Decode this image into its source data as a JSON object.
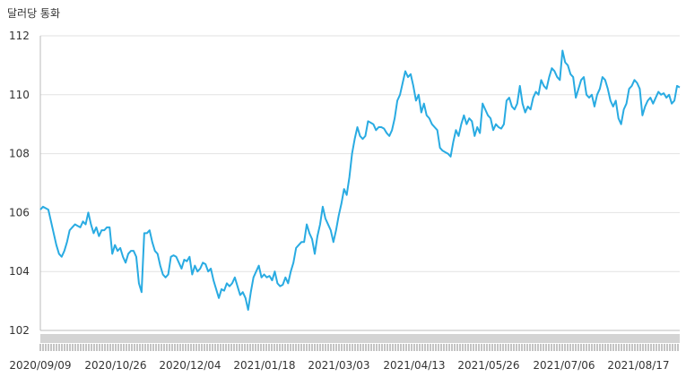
{
  "chart_data": {
    "type": "line",
    "ylabel": "달러당 통화",
    "ylim": [
      102,
      112
    ],
    "yticks": [
      "102",
      "104",
      "106",
      "108",
      "110",
      "112"
    ],
    "xticks": [
      "2020/09/09",
      "2020/10/26",
      "2020/12/04",
      "2021/01/18",
      "2021/03/03",
      "2021/04/13",
      "2021/05/26",
      "2021/07/06",
      "2021/08/17"
    ],
    "grid": true,
    "line_color": "#29abe2",
    "scrollbar_color": "#d4d4d4",
    "series": [
      {
        "values": [
          106.1,
          106.2,
          106.15,
          106.1,
          105.7,
          105.3,
          104.9,
          104.6,
          104.5,
          104.7,
          105.0,
          105.4,
          105.5,
          105.6,
          105.55,
          105.5,
          105.7,
          105.6,
          106.0,
          105.6,
          105.3,
          105.5,
          105.2,
          105.4,
          105.4,
          105.5,
          105.5,
          104.6,
          104.9,
          104.7,
          104.8,
          104.5,
          104.3,
          104.6,
          104.7,
          104.7,
          104.5,
          103.6,
          103.3,
          105.3,
          105.3,
          105.4,
          105.0,
          104.7,
          104.6,
          104.2,
          103.9,
          103.8,
          103.9,
          104.5,
          104.55,
          104.5,
          104.3,
          104.1,
          104.4,
          104.35,
          104.5,
          103.9,
          104.2,
          104.0,
          104.1,
          104.3,
          104.25,
          104.0,
          104.1,
          103.7,
          103.4,
          103.1,
          103.4,
          103.35,
          103.6,
          103.5,
          103.6,
          103.8,
          103.5,
          103.2,
          103.3,
          103.1,
          102.7,
          103.3,
          103.8,
          104.0,
          104.2,
          103.8,
          103.9,
          103.8,
          103.85,
          103.7,
          104.0,
          103.6,
          103.5,
          103.55,
          103.8,
          103.6,
          104.0,
          104.3,
          104.8,
          104.9,
          105.0,
          105.0,
          105.6,
          105.3,
          105.1,
          104.6,
          105.2,
          105.6,
          106.2,
          105.8,
          105.6,
          105.4,
          105.0,
          105.4,
          105.9,
          106.3,
          106.8,
          106.6,
          107.2,
          108.0,
          108.5,
          108.9,
          108.6,
          108.5,
          108.6,
          109.1,
          109.05,
          109.0,
          108.8,
          108.9,
          108.9,
          108.85,
          108.7,
          108.6,
          108.8,
          109.2,
          109.8,
          110.0,
          110.4,
          110.8,
          110.6,
          110.7,
          110.3,
          109.8,
          110.0,
          109.4,
          109.7,
          109.3,
          109.2,
          109.0,
          108.9,
          108.8,
          108.2,
          108.1,
          108.05,
          108.0,
          107.9,
          108.4,
          108.8,
          108.6,
          109.0,
          109.3,
          109.0,
          109.2,
          109.1,
          108.6,
          108.9,
          108.7,
          109.7,
          109.5,
          109.3,
          109.2,
          108.8,
          109.0,
          108.9,
          108.85,
          109.0,
          109.8,
          109.9,
          109.6,
          109.5,
          109.7,
          110.3,
          109.7,
          109.4,
          109.6,
          109.5,
          109.9,
          110.1,
          110.0,
          110.5,
          110.3,
          110.2,
          110.6,
          110.9,
          110.8,
          110.6,
          110.5,
          111.5,
          111.1,
          111.0,
          110.7,
          110.6,
          109.9,
          110.2,
          110.5,
          110.6,
          110.0,
          109.9,
          110.0,
          109.6,
          110.0,
          110.2,
          110.6,
          110.5,
          110.2,
          109.8,
          109.6,
          109.8,
          109.2,
          109.0,
          109.5,
          109.7,
          110.2,
          110.3,
          110.5,
          110.4,
          110.2,
          109.3,
          109.6,
          109.8,
          109.9,
          109.7,
          109.9,
          110.1,
          110.0,
          110.05,
          109.9,
          110.0,
          109.7,
          109.8,
          110.3,
          110.25
        ]
      }
    ]
  }
}
